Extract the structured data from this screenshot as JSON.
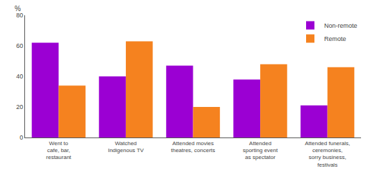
{
  "chart_data": {
    "type": "bar",
    "ylabel": "%",
    "categories": [
      "Went to\ncafe, bar,\nrestaurant",
      "Watched\nIndigenous TV",
      "Attended movies\ntheatres, concerts",
      "Attended\nsporting event\nas spectator",
      "Attended funerals,\nceremonies,\nsorry business,\nfestivals"
    ],
    "series": [
      {
        "name": "Non-remote",
        "color": "#9b00d3",
        "values": [
          62,
          40,
          47,
          38,
          21
        ]
      },
      {
        "name": "Remote",
        "color": "#f5821f",
        "values": [
          34,
          63,
          20,
          48,
          46
        ]
      }
    ],
    "ylim": [
      0,
      80
    ],
    "yticks": [
      0,
      20,
      40,
      60,
      80
    ],
    "grid": false,
    "legend": "upper right"
  }
}
